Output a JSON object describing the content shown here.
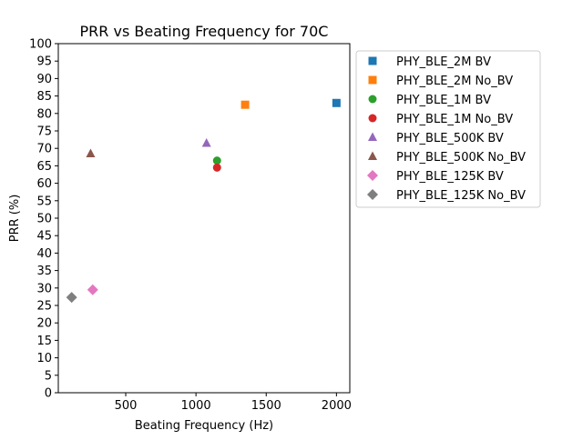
{
  "chart_data": {
    "type": "scatter",
    "title": "PRR vs Beating Frequency for 70C",
    "xlabel": "Beating Frequency (Hz)",
    "ylabel": "PRR (%)",
    "xlim": [
      20,
      2095
    ],
    "ylim": [
      0,
      100
    ],
    "xticks": [
      "500",
      "1000",
      "1500",
      "2000"
    ],
    "yticks": [
      "0",
      "5",
      "10",
      "15",
      "20",
      "25",
      "30",
      "35",
      "40",
      "45",
      "50",
      "55",
      "60",
      "65",
      "70",
      "75",
      "80",
      "85",
      "90",
      "95",
      "100"
    ],
    "grid": false,
    "legend_position": "outside-right",
    "series": [
      {
        "name": "PHY_BLE_2M BV",
        "marker": "square",
        "color": "#1f77b4",
        "points": [
          {
            "x": 2000,
            "y": 83
          }
        ]
      },
      {
        "name": "PHY_BLE_2M No_BV",
        "marker": "square",
        "color": "#ff7f0e",
        "points": [
          {
            "x": 1350,
            "y": 82.5
          }
        ]
      },
      {
        "name": "PHY_BLE_1M BV",
        "marker": "circle",
        "color": "#2ca02c",
        "points": [
          {
            "x": 1150,
            "y": 66.5
          }
        ]
      },
      {
        "name": "PHY_BLE_1M No_BV",
        "marker": "circle",
        "color": "#d62728",
        "points": [
          {
            "x": 1150,
            "y": 64.5
          }
        ]
      },
      {
        "name": "PHY_BLE_500K BV",
        "marker": "triangle",
        "color": "#9467bd",
        "points": [
          {
            "x": 1075,
            "y": 71.5
          }
        ]
      },
      {
        "name": "PHY_BLE_500K No_BV",
        "marker": "triangle",
        "color": "#8c564b",
        "points": [
          {
            "x": 250,
            "y": 68.5
          }
        ]
      },
      {
        "name": "PHY_BLE_125K BV",
        "marker": "diamond",
        "color": "#e377c2",
        "points": [
          {
            "x": 265,
            "y": 29.5
          }
        ]
      },
      {
        "name": "PHY_BLE_125K No_BV",
        "marker": "diamond",
        "color": "#7f7f7f",
        "points": [
          {
            "x": 115,
            "y": 27.3
          }
        ]
      }
    ]
  }
}
